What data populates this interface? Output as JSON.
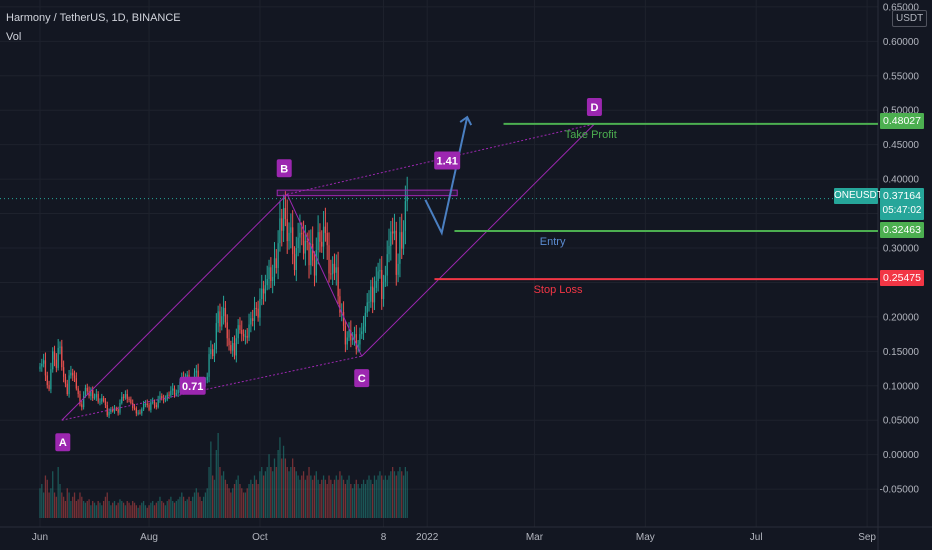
{
  "header": {
    "title": "Harmony / TetherUS, 1D, BINANCE",
    "volume_label": "Vol"
  },
  "currency_badge": "USDT",
  "colors": {
    "background": "#131722",
    "grid": "#1e222d",
    "axis_text": "#b2b5be",
    "up": "#26a69a",
    "down": "#ef5350",
    "pattern": "#9c27b0",
    "take_profit": "#4caf50",
    "entry": "#4caf50",
    "stop_loss": "#f23645",
    "projection": "#4a7fc1",
    "price_tag": "#26a69a"
  },
  "chart_data": {
    "type": "candlestick",
    "title": "Harmony / TetherUS, 1D, BINANCE",
    "price_axis": {
      "ticks": [
        0.65,
        0.6,
        0.55,
        0.5,
        0.45,
        0.4,
        0.35,
        0.3,
        0.25,
        0.2,
        0.15,
        0.1,
        0.05,
        0.0,
        -0.05
      ],
      "tick_labels": [
        "0.65000",
        "0.60000",
        "0.55000",
        "0.50000",
        "0.45000",
        "0.40000",
        "0.35000",
        "0.30000",
        "0.25000",
        "0.20000",
        "0.15000",
        "0.10000",
        "0.05000",
        "0.00000",
        "-0.05000"
      ],
      "range": [
        -0.105,
        0.66
      ]
    },
    "time_axis": {
      "labels": [
        "Jun",
        "Aug",
        "Oct",
        "8",
        "2022",
        "Mar",
        "May",
        "Jul",
        "Sep"
      ],
      "label_days": [
        0,
        60,
        121,
        189,
        213,
        272,
        333,
        394,
        455
      ],
      "range_days": [
        -22,
        461
      ]
    },
    "candles_close": [
      0.128,
      0.132,
      0.137,
      0.115,
      0.101,
      0.095,
      0.124,
      0.15,
      0.138,
      0.126,
      0.155,
      0.157,
      0.127,
      0.113,
      0.103,
      0.088,
      0.115,
      0.119,
      0.115,
      0.111,
      0.096,
      0.088,
      0.073,
      0.069,
      0.085,
      0.097,
      0.092,
      0.085,
      0.094,
      0.082,
      0.083,
      0.088,
      0.077,
      0.077,
      0.082,
      0.078,
      0.072,
      0.057,
      0.062,
      0.066,
      0.063,
      0.067,
      0.066,
      0.061,
      0.075,
      0.084,
      0.083,
      0.088,
      0.081,
      0.08,
      0.075,
      0.068,
      0.067,
      0.06,
      0.061,
      0.06,
      0.066,
      0.074,
      0.074,
      0.072,
      0.065,
      0.076,
      0.077,
      0.072,
      0.069,
      0.08,
      0.085,
      0.082,
      0.08,
      0.08,
      0.087,
      0.086,
      0.093,
      0.096,
      0.087,
      0.089,
      0.094,
      0.106,
      0.113,
      0.101,
      0.109,
      0.116,
      0.102,
      0.098,
      0.106,
      0.119,
      0.122,
      0.106,
      0.101,
      0.099,
      0.105,
      0.108,
      0.113,
      0.146,
      0.153,
      0.143,
      0.153,
      0.191,
      0.208,
      0.186,
      0.201,
      0.213,
      0.192,
      0.169,
      0.159,
      0.151,
      0.162,
      0.144,
      0.169,
      0.188,
      0.181,
      0.175,
      0.172,
      0.172,
      0.17,
      0.189,
      0.198,
      0.194,
      0.213,
      0.212,
      0.199,
      0.226,
      0.241,
      0.234,
      0.246,
      0.255,
      0.272,
      0.252,
      0.258,
      0.285,
      0.271,
      0.307,
      0.343,
      0.325,
      0.358,
      0.342,
      0.31,
      0.322,
      0.33,
      0.291,
      0.268,
      0.3,
      0.315,
      0.322,
      0.32,
      0.292,
      0.31,
      0.309,
      0.275,
      0.306,
      0.282,
      0.26,
      0.297,
      0.323,
      0.309,
      0.302,
      0.331,
      0.322,
      0.304,
      0.263,
      0.262,
      0.277,
      0.264,
      0.272,
      0.23,
      0.206,
      0.207,
      0.187,
      0.16,
      0.17,
      0.18,
      0.166,
      0.17,
      0.175,
      0.153,
      0.16,
      0.175,
      0.179,
      0.186,
      0.206,
      0.221,
      0.222,
      0.244,
      0.221,
      0.242,
      0.252,
      0.266,
      0.268,
      0.226,
      0.251,
      0.26,
      0.291,
      0.303,
      0.324,
      0.321,
      0.325,
      0.261,
      0.277,
      0.323,
      0.299,
      0.325,
      0.368,
      0.375
    ],
    "volume_relative": [
      0.35,
      0.4,
      0.3,
      0.5,
      0.45,
      0.3,
      0.35,
      0.55,
      0.3,
      0.25,
      0.6,
      0.4,
      0.3,
      0.25,
      0.2,
      0.35,
      0.3,
      0.2,
      0.25,
      0.3,
      0.2,
      0.22,
      0.3,
      0.25,
      0.2,
      0.18,
      0.2,
      0.22,
      0.15,
      0.2,
      0.18,
      0.15,
      0.2,
      0.18,
      0.15,
      0.2,
      0.25,
      0.3,
      0.2,
      0.15,
      0.18,
      0.2,
      0.15,
      0.18,
      0.22,
      0.2,
      0.18,
      0.15,
      0.2,
      0.18,
      0.15,
      0.2,
      0.18,
      0.15,
      0.12,
      0.15,
      0.18,
      0.2,
      0.15,
      0.12,
      0.15,
      0.18,
      0.2,
      0.15,
      0.18,
      0.2,
      0.25,
      0.2,
      0.18,
      0.15,
      0.2,
      0.22,
      0.25,
      0.2,
      0.18,
      0.2,
      0.22,
      0.25,
      0.3,
      0.25,
      0.2,
      0.22,
      0.25,
      0.2,
      0.25,
      0.3,
      0.35,
      0.3,
      0.25,
      0.2,
      0.25,
      0.3,
      0.35,
      0.6,
      0.9,
      0.5,
      0.45,
      0.8,
      1.0,
      0.6,
      0.5,
      0.55,
      0.45,
      0.4,
      0.35,
      0.3,
      0.35,
      0.4,
      0.45,
      0.5,
      0.4,
      0.35,
      0.3,
      0.3,
      0.35,
      0.4,
      0.45,
      0.4,
      0.5,
      0.45,
      0.4,
      0.55,
      0.6,
      0.5,
      0.55,
      0.6,
      0.75,
      0.6,
      0.55,
      0.7,
      0.6,
      0.8,
      0.95,
      0.7,
      0.85,
      0.7,
      0.6,
      0.55,
      0.6,
      0.7,
      0.6,
      0.55,
      0.5,
      0.45,
      0.5,
      0.55,
      0.45,
      0.5,
      0.6,
      0.5,
      0.45,
      0.5,
      0.55,
      0.45,
      0.4,
      0.45,
      0.5,
      0.45,
      0.4,
      0.5,
      0.45,
      0.4,
      0.45,
      0.5,
      0.45,
      0.55,
      0.5,
      0.45,
      0.4,
      0.45,
      0.5,
      0.4,
      0.35,
      0.4,
      0.45,
      0.4,
      0.35,
      0.4,
      0.45,
      0.4,
      0.45,
      0.5,
      0.45,
      0.4,
      0.5,
      0.45,
      0.5,
      0.55,
      0.5,
      0.45,
      0.5,
      0.45,
      0.5,
      0.55,
      0.6,
      0.55,
      0.5,
      0.55,
      0.6,
      0.55,
      0.5,
      0.6,
      0.55,
      0.6,
      0.65
    ],
    "harmonic_pattern": {
      "points": [
        {
          "label": "A",
          "day": 12,
          "price": 0.05
        },
        {
          "label": "B",
          "day": 136,
          "price": 0.378
        },
        {
          "label": "C",
          "day": 177,
          "price": 0.143
        },
        {
          "label": "D",
          "day": 305,
          "price": 0.48
        }
      ],
      "ratios": [
        {
          "label": "0.71",
          "day": 84,
          "price": 0.1
        },
        {
          "label": "1.41",
          "day": 224,
          "price": 0.427
        }
      ]
    },
    "box_top": 0.384,
    "box_bottom": 0.376,
    "projection_path": [
      {
        "day": 212,
        "price": 0.37
      },
      {
        "day": 221,
        "price": 0.322
      },
      {
        "day": 235,
        "price": 0.49
      }
    ],
    "levels": [
      {
        "name": "Take Profit",
        "price": 0.48027,
        "label": "0.48027",
        "from_day": 255,
        "text_day": 303,
        "color": "#4caf50"
      },
      {
        "name": "Entry",
        "price": 0.32463,
        "label": "0.32463",
        "from_day": 228,
        "text_day": 282,
        "color": "#4caf50"
      },
      {
        "name": "Stop Loss",
        "price": 0.25475,
        "label": "0.25475",
        "from_day": 217,
        "text_day": 285,
        "color": "#f23645"
      }
    ],
    "current_price": {
      "symbol": "ONEUSDT",
      "price": 0.37164,
      "label": "0.37164",
      "countdown": "05:47:02"
    }
  }
}
